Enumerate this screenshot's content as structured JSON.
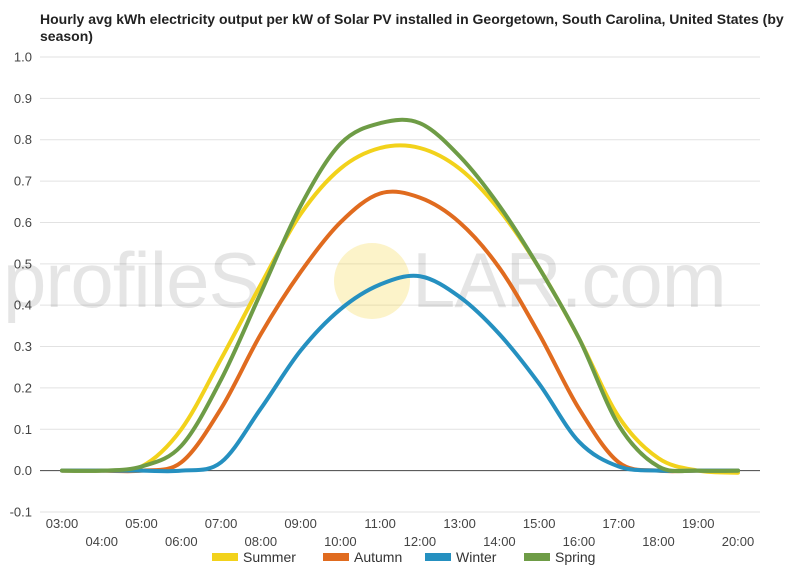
{
  "chart_data": {
    "type": "line",
    "title": "Hourly avg kWh electricity output per kW of Solar PV installed in Georgetown, South Carolina, United States (by season)",
    "xlabel": "",
    "ylabel": "",
    "ylim": [
      -0.1,
      1.0
    ],
    "y_ticks": [
      "1.0",
      "0.9",
      "0.8",
      "0.7",
      "0.6",
      "0.5",
      "0.4",
      "0.3",
      "0.2",
      "0.1",
      "0.0",
      "-0.1"
    ],
    "x_tick_labels": [
      "03:00",
      "04:00",
      "05:00",
      "06:00",
      "07:00",
      "08:00",
      "09:00",
      "10:00",
      "11:00",
      "12:00",
      "13:00",
      "14:00",
      "15:00",
      "16:00",
      "17:00",
      "18:00",
      "19:00",
      "20:00"
    ],
    "x": [
      3,
      4,
      5,
      6,
      7,
      8,
      9,
      10,
      11,
      12,
      13,
      14,
      15,
      16,
      17,
      18,
      19,
      20
    ],
    "grid": true,
    "legend_position": "bottom",
    "series": [
      {
        "name": "Summer",
        "color": "#f2d21b",
        "values": [
          0.0,
          0.0,
          0.01,
          0.1,
          0.27,
          0.45,
          0.62,
          0.73,
          0.78,
          0.78,
          0.73,
          0.63,
          0.49,
          0.32,
          0.13,
          0.03,
          0.0,
          -0.005
        ]
      },
      {
        "name": "Autumn",
        "color": "#e06b1f",
        "values": [
          0.0,
          0.0,
          0.0,
          0.02,
          0.15,
          0.33,
          0.48,
          0.6,
          0.67,
          0.66,
          0.6,
          0.49,
          0.33,
          0.15,
          0.02,
          0.0,
          0.0,
          0.0
        ]
      },
      {
        "name": "Winter",
        "color": "#2590c0",
        "values": [
          0.0,
          0.0,
          0.0,
          0.0,
          0.02,
          0.15,
          0.29,
          0.39,
          0.45,
          0.47,
          0.42,
          0.33,
          0.21,
          0.07,
          0.01,
          0.0,
          0.0,
          0.0
        ]
      },
      {
        "name": "Spring",
        "color": "#6e9c46",
        "values": [
          0.0,
          0.0,
          0.01,
          0.06,
          0.22,
          0.43,
          0.64,
          0.79,
          0.84,
          0.84,
          0.76,
          0.64,
          0.49,
          0.32,
          0.11,
          0.01,
          0.0,
          0.0
        ]
      }
    ]
  },
  "watermark": {
    "text_left": "profileS",
    "text_right": "LAR.com",
    "sun_color": "#f5d33c"
  }
}
